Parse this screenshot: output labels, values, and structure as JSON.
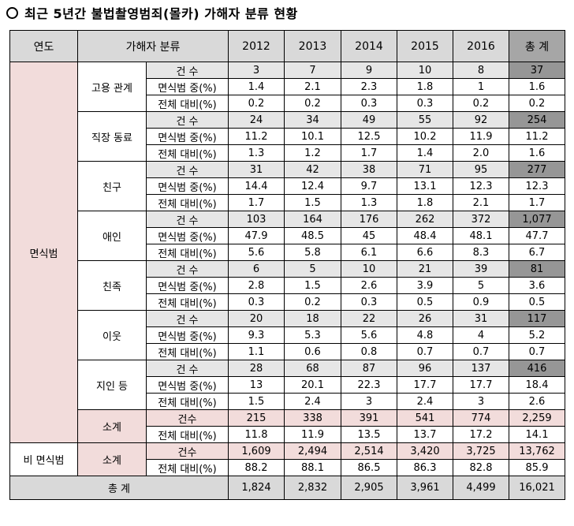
{
  "title": "최근 5년간 불법촬영범죄(몰카) 가해자 분류 현황",
  "headers": {
    "year": "연도",
    "classification": "가해자 분류",
    "years": [
      "2012",
      "2013",
      "2014",
      "2015",
      "2016"
    ],
    "total": "총 계"
  },
  "labels": {
    "count": "건 수",
    "share_in_group": "면식범 중(%)",
    "share_total": "전체 대비(%)",
    "count_compact": "건수"
  },
  "face_group": {
    "name": "면식범",
    "categories": [
      {
        "name": "고용 관계",
        "count": [
          "3",
          "7",
          "9",
          "10",
          "8",
          "37"
        ],
        "share_in_group": [
          "1.4",
          "2.1",
          "2.3",
          "1.8",
          "1",
          "1.6"
        ],
        "share_total": [
          "0.2",
          "0.2",
          "0.3",
          "0.3",
          "0.2",
          "0.2"
        ]
      },
      {
        "name": "직장 동료",
        "count": [
          "24",
          "34",
          "49",
          "55",
          "92",
          "254"
        ],
        "share_in_group": [
          "11.2",
          "10.1",
          "12.5",
          "10.2",
          "11.9",
          "11.2"
        ],
        "share_total": [
          "1.3",
          "1.2",
          "1.7",
          "1.4",
          "2.0",
          "1.6"
        ]
      },
      {
        "name": "친구",
        "count": [
          "31",
          "42",
          "38",
          "71",
          "95",
          "277"
        ],
        "share_in_group": [
          "14.4",
          "12.4",
          "9.7",
          "13.1",
          "12.3",
          "12.3"
        ],
        "share_total": [
          "1.7",
          "1.5",
          "1.3",
          "1.8",
          "2.1",
          "1.7"
        ]
      },
      {
        "name": "애인",
        "count": [
          "103",
          "164",
          "176",
          "262",
          "372",
          "1,077"
        ],
        "share_in_group": [
          "47.9",
          "48.5",
          "45",
          "48.4",
          "48.1",
          "47.7"
        ],
        "share_total": [
          "5.6",
          "5.8",
          "6.1",
          "6.6",
          "8.3",
          "6.7"
        ]
      },
      {
        "name": "친족",
        "count": [
          "6",
          "5",
          "10",
          "21",
          "39",
          "81"
        ],
        "share_in_group": [
          "2.8",
          "1.5",
          "2.6",
          "3.9",
          "5",
          "3.6"
        ],
        "share_total": [
          "0.3",
          "0.2",
          "0.3",
          "0.5",
          "0.9",
          "0.5"
        ]
      },
      {
        "name": "이웃",
        "count": [
          "20",
          "18",
          "22",
          "26",
          "31",
          "117"
        ],
        "share_in_group": [
          "9.3",
          "5.3",
          "5.6",
          "4.8",
          "4",
          "5.2"
        ],
        "share_total": [
          "1.1",
          "0.6",
          "0.8",
          "0.7",
          "0.7",
          "0.7"
        ]
      },
      {
        "name": "지인 등",
        "count": [
          "28",
          "68",
          "87",
          "96",
          "137",
          "416"
        ],
        "share_in_group": [
          "13",
          "20.1",
          "22.3",
          "17.7",
          "17.7",
          "18.4"
        ],
        "share_total": [
          "1.5",
          "2.4",
          "3",
          "2.4",
          "3",
          "2.6"
        ]
      }
    ],
    "subtotal": {
      "name": "소계",
      "count": [
        "215",
        "338",
        "391",
        "541",
        "774",
        "2,259"
      ],
      "share_total": [
        "11.8",
        "11.9",
        "13.5",
        "13.7",
        "17.2",
        "14.1"
      ]
    }
  },
  "nonface_group": {
    "name": "비 면식범",
    "subtotal": {
      "name": "소계",
      "count": [
        "1,609",
        "2,494",
        "2,514",
        "3,420",
        "3,725",
        "13,762"
      ],
      "share_total": [
        "88.2",
        "88.1",
        "86.5",
        "86.3",
        "82.8",
        "85.9"
      ]
    }
  },
  "grand_total": {
    "name": "총 계",
    "values": [
      "1,824",
      "2,832",
      "2,905",
      "3,961",
      "4,499",
      "16,021"
    ]
  },
  "colors": {
    "header_bg": "#d9d9d9",
    "total_header_bg": "#a6a6a6",
    "count_row_bg": "#e6e6e6",
    "count_total_bg": "#969696",
    "category_bg": "#f2dcdb"
  }
}
